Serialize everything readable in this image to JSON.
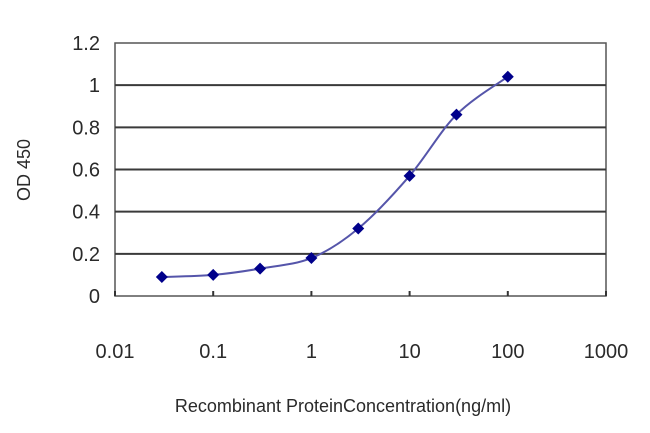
{
  "chart_data": {
    "type": "line",
    "title": "",
    "xlabel": "Recombinant ProteinConcentration(ng/ml)",
    "ylabel": "OD 450",
    "x_scale": "log",
    "xlim": [
      0.01,
      1000
    ],
    "ylim": [
      0,
      1.2
    ],
    "x_ticks": [
      "0.01",
      "0.1",
      "1",
      "10",
      "100",
      "1000"
    ],
    "y_ticks": [
      "0",
      "0.2",
      "0.4",
      "0.6",
      "0.8",
      "1",
      "1.2"
    ],
    "grid": {
      "horizontal": true,
      "vertical": false
    },
    "legend": null,
    "series": [
      {
        "name": "OD 450",
        "marker": "diamond",
        "marker_color": "#00008B",
        "line_color": "#5555AA",
        "x": [
          0.03,
          0.1,
          0.3,
          1,
          3,
          10,
          30,
          100
        ],
        "values": [
          0.09,
          0.1,
          0.13,
          0.18,
          0.32,
          0.57,
          0.86,
          1.04
        ]
      }
    ]
  }
}
